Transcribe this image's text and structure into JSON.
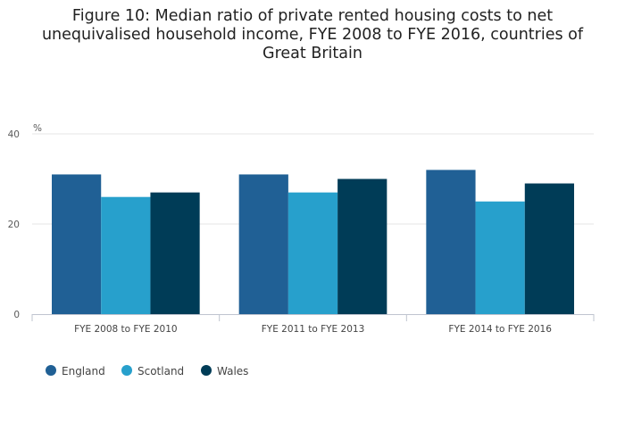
{
  "chart_data": {
    "type": "bar",
    "title": "Figure 10: Median ratio of private rented housing costs to net unequivalised household income, FYE 2008 to FYE 2016, countries of Great Britain",
    "ylabel": "%",
    "xlabel": "",
    "categories": [
      "FYE 2008 to FYE 2010",
      "FYE 2011 to FYE 2013",
      "FYE 2014 to FYE 2016"
    ],
    "series": [
      {
        "name": "England",
        "color": "#206095",
        "values": [
          31,
          31,
          32
        ]
      },
      {
        "name": "Scotland",
        "color": "#27A0CC",
        "values": [
          26,
          27,
          25
        ]
      },
      {
        "name": "Wales",
        "color": "#003C57",
        "values": [
          27,
          30,
          29
        ]
      }
    ],
    "ylim": [
      0,
      40
    ],
    "yticks": [
      0,
      20,
      40
    ],
    "grid": true,
    "legend_position": "bottom-left"
  }
}
